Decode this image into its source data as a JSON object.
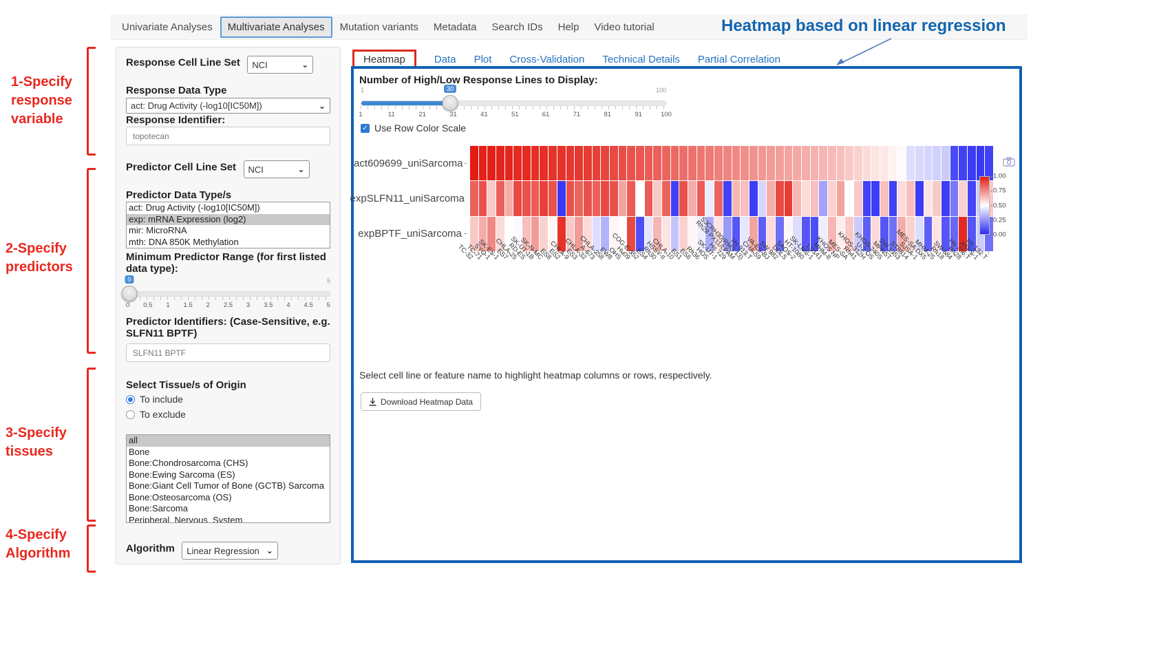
{
  "nav": {
    "items": [
      {
        "label": "Univariate Analyses",
        "active": false
      },
      {
        "label": "Multivariate Analyses",
        "active": true
      },
      {
        "label": "Mutation variants",
        "active": false
      },
      {
        "label": "Metadata",
        "active": false
      },
      {
        "label": "Search IDs",
        "active": false
      },
      {
        "label": "Help",
        "active": false
      },
      {
        "label": "Video tutorial",
        "active": false
      }
    ]
  },
  "annotations": {
    "title": "Heatmap based on linear regression",
    "steps": [
      {
        "label": "1-Specify\nresponse\nvariable"
      },
      {
        "label": "2-Specify\npredictors"
      },
      {
        "label": "3-Specify\ntissues"
      },
      {
        "label": "4-Specify\nAlgorithm"
      }
    ]
  },
  "sidebar": {
    "response_cell_line_set_label": "Response Cell Line Set",
    "response_cell_line_set_value": "NCI",
    "response_data_type_label": "Response Data Type",
    "response_data_type_value": "act: Drug Activity (-log10[IC50M])",
    "response_identifier_label": "Response Identifier:",
    "response_identifier_value": "topotecan",
    "predictor_cell_line_set_label": "Predictor Cell Line Set",
    "predictor_cell_line_set_value": "NCI",
    "predictor_data_types_label": "Predictor Data Type/s",
    "predictor_data_types_options": [
      {
        "label": "act: Drug Activity (-log10[IC50M])",
        "selected": false
      },
      {
        "label": "exp: mRNA Expression (log2)",
        "selected": true
      },
      {
        "label": "mir: MicroRNA",
        "selected": false
      },
      {
        "label": "mth: DNA 850K Methylation",
        "selected": false
      }
    ],
    "min_predictor_range_label": "Minimum Predictor Range (for first listed data type):",
    "min_predictor_range_value": "0",
    "min_predictor_range_max": "5",
    "min_predictor_range_ticks": [
      "0",
      "0.5",
      "1",
      "1.5",
      "2",
      "2.5",
      "3",
      "3.5",
      "4",
      "4.5",
      "5"
    ],
    "predictor_identifiers_label": "Predictor Identifiers: (Case-Sensitive, e.g. SLFN11 BPTF)",
    "predictor_identifiers_value": "SLFN11 BPTF",
    "tissue_label": "Select Tissue/s of Origin",
    "tissue_include_label": "To include",
    "tissue_exclude_label": "To exclude",
    "tissue_options": [
      {
        "label": "all",
        "selected": true
      },
      {
        "label": "Bone",
        "selected": false
      },
      {
        "label": "Bone:Chondrosarcoma (CHS)",
        "selected": false
      },
      {
        "label": "Bone:Ewing Sarcoma (ES)",
        "selected": false
      },
      {
        "label": "Bone:Giant Cell Tumor of Bone (GCTB) Sarcoma",
        "selected": false
      },
      {
        "label": "Bone:Osteosarcoma (OS)",
        "selected": false
      },
      {
        "label": "Bone:Sarcoma",
        "selected": false
      },
      {
        "label": "Peripheral_Nervous_System",
        "selected": false
      }
    ],
    "algorithm_label": "Algorithm",
    "algorithm_value": "Linear Regression"
  },
  "main": {
    "tabs": [
      {
        "label": "Heatmap",
        "active": true
      },
      {
        "label": "Data",
        "active": false
      },
      {
        "label": "Plot",
        "active": false
      },
      {
        "label": "Cross-Validation",
        "active": false
      },
      {
        "label": "Technical Details",
        "active": false
      },
      {
        "label": "Partial Correlation",
        "active": false
      }
    ],
    "slider": {
      "label": "Number of High/Low Response Lines to Display:",
      "min": "1",
      "max": "100",
      "value": "30",
      "ticks": [
        "1",
        "11",
        "21",
        "31",
        "41",
        "51",
        "61",
        "71",
        "81",
        "91",
        "100"
      ]
    },
    "row_color_scale_label": "Use Row Color Scale",
    "hint": "Select cell line or feature name to highlight heatmap columns or rows, respectively.",
    "download_button": "Download Heatmap Data"
  },
  "chart_data": {
    "type": "heatmap",
    "rows": [
      "act609699_uniSarcoma",
      "expSLFN11_uniSarcoma",
      "expBPTF_uniSarcoma"
    ],
    "columns": [
      "TC-32",
      "TC-71",
      "SYO-1",
      "SK-ES-1",
      "ES7",
      "CHLA-25",
      "RD-ES",
      "SK-UT-1B",
      "SK-N-MC",
      "ES8",
      "ES2",
      "CHLA-9",
      "ES3",
      "CHLA-32",
      "A-673",
      "CHLA-258",
      "EW8",
      "OHS",
      "Hu09",
      "COG-E-352",
      "ES4",
      "Rh30",
      "HSSY-II",
      "CHLA-10",
      "ES1",
      "ES6",
      "Rh36",
      "HOS",
      "SK-UT-1",
      "Hs 729",
      "Rh28 PX11/LPAM",
      "SJCRH30(RMS 13)",
      "Hs 913.T",
      "CHA-59",
      "VA-ES-BJ",
      "SW 982",
      "DDLS",
      "SAOS-2",
      "HT-1080",
      "SK-LMS-1",
      "LS141",
      "MHM-8",
      "KHOS NP",
      "MES-SA",
      "Rh41",
      "KHOS-312H",
      "U-2 OS",
      "KHOS-240S",
      "MPNST",
      "SW 1353",
      "ST8814",
      "SJSA-1",
      "MES-SA DX5",
      "MHM-25",
      "Rh18",
      "SW 684",
      "Rh28",
      "Hs 706.T",
      "ASPS-1",
      "Hs 132.T"
    ],
    "values": [
      [
        1.0,
        0.99,
        0.99,
        0.98,
        0.98,
        0.97,
        0.97,
        0.96,
        0.96,
        0.95,
        0.95,
        0.94,
        0.94,
        0.93,
        0.92,
        0.91,
        0.9,
        0.89,
        0.88,
        0.87,
        0.86,
        0.85,
        0.84,
        0.83,
        0.82,
        0.81,
        0.8,
        0.79,
        0.78,
        0.77,
        0.76,
        0.75,
        0.74,
        0.73,
        0.72,
        0.71,
        0.7,
        0.69,
        0.68,
        0.67,
        0.66,
        0.65,
        0.64,
        0.62,
        0.6,
        0.58,
        0.56,
        0.55,
        0.53,
        0.51,
        0.42,
        0.41,
        0.4,
        0.39,
        0.38,
        0.07,
        0.05,
        0.04,
        0.03,
        0.05
      ],
      [
        0.85,
        0.88,
        0.62,
        0.85,
        0.68,
        0.9,
        0.88,
        0.86,
        0.92,
        0.88,
        0.03,
        0.88,
        0.84,
        0.88,
        0.85,
        0.9,
        0.88,
        0.7,
        0.86,
        0.5,
        0.86,
        0.62,
        0.84,
        0.05,
        0.88,
        0.68,
        0.86,
        0.46,
        0.84,
        0.05,
        0.66,
        0.64,
        0.04,
        0.4,
        0.68,
        0.9,
        0.93,
        0.66,
        0.58,
        0.64,
        0.28,
        0.6,
        0.7,
        0.5,
        0.62,
        0.05,
        0.04,
        0.64,
        0.05,
        0.58,
        0.64,
        0.04,
        0.56,
        0.62,
        0.04,
        0.18,
        0.6,
        0.06,
        0.38,
        0.62
      ],
      [
        0.62,
        0.68,
        0.76,
        0.58,
        0.5,
        0.49,
        0.64,
        0.72,
        0.6,
        0.52,
        0.95,
        0.62,
        0.72,
        0.58,
        0.42,
        0.32,
        0.52,
        0.5,
        0.9,
        0.08,
        0.44,
        0.66,
        0.56,
        0.36,
        0.6,
        0.52,
        0.46,
        0.3,
        0.56,
        0.26,
        0.1,
        0.44,
        0.7,
        0.12,
        0.58,
        0.16,
        0.52,
        0.42,
        0.1,
        0.08,
        0.46,
        0.66,
        0.54,
        0.62,
        0.38,
        0.12,
        0.58,
        0.1,
        0.16,
        0.68,
        0.6,
        0.42,
        0.12,
        0.56,
        0.1,
        0.14,
        0.97,
        0.1,
        0.38,
        0.16
      ]
    ],
    "colorbar_ticks": [
      "1.00",
      "0.75",
      "0.50",
      "0.25",
      "0.00"
    ],
    "colors": {
      "high": "#e21c13",
      "mid": "#ffffff",
      "low": "#2c2cf4"
    }
  },
  "colors": {
    "accent_blue": "#1060b2",
    "link_blue": "#2272c3",
    "annotation_red": "#e8281e",
    "slider_blue": "#3e87d4"
  }
}
